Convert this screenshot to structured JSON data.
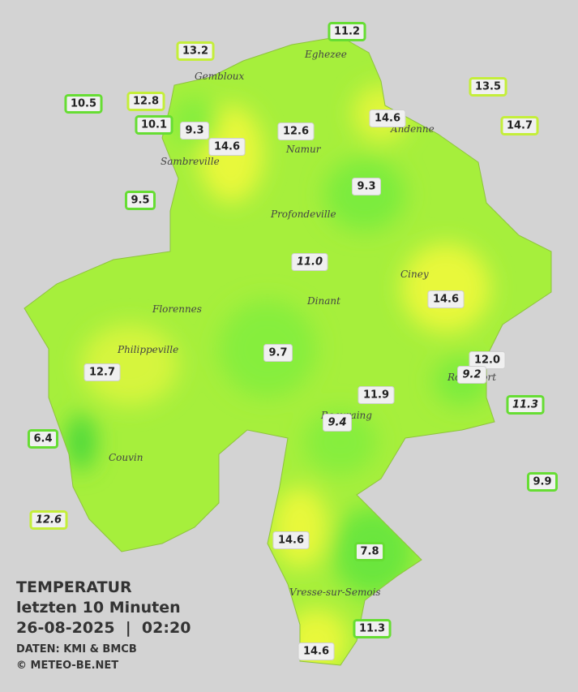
{
  "title": "TEMPERATUR",
  "subtitle": "letzten 10 Minuten",
  "datetime": "26-08-2025  |  02:20",
  "source": "DATEN: KMI & BMCB",
  "copyright": "© METEO-BE.NET",
  "cities": [
    "Eghezee",
    "Gembloux",
    "Andenne",
    "Namur",
    "Sambreville",
    "Profondeville",
    "Ciney",
    "Florennes",
    "Dinant",
    "Philippeville",
    "Rochefort",
    "Beauraing",
    "Couvin",
    "Vresse-sur-Semois"
  ],
  "stations": [
    "11.2",
    "13.2",
    "10.5",
    "12.8",
    "10.1",
    "9.3",
    "14.6",
    "12.6",
    "14.6",
    "13.5",
    "14.7",
    "9.5",
    "9.3",
    "11.0",
    "14.6",
    "9.7",
    "12.0",
    "9.2",
    "12.7",
    "11.9",
    "11.3",
    "9.4",
    "6.4",
    "9.9",
    "12.6",
    "14.6",
    "7.8",
    "11.3",
    "14.6"
  ]
}
